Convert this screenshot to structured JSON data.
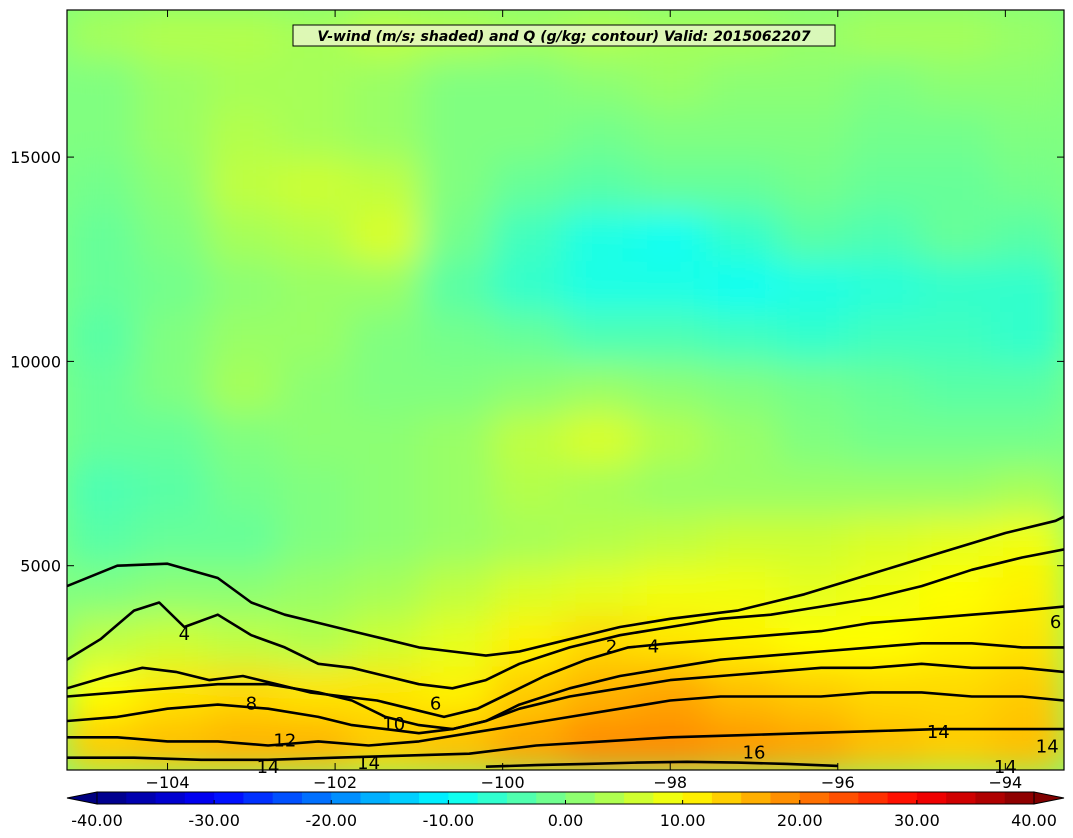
{
  "chart_data": {
    "type": "heatmap",
    "title": "V-wind (m/s; shaded) and Q (g/kg; contour) Valid: 2015062207",
    "xlabel": "",
    "ylabel": "",
    "xlim": [
      -105.2,
      -93.3
    ],
    "ylim": [
      0,
      18600
    ],
    "x_ticks": [
      -104,
      -102,
      -100,
      -98,
      -96,
      -94
    ],
    "x_tick_labels": [
      "−104",
      "−102",
      "−100",
      "−98",
      "−96",
      "−94"
    ],
    "y_ticks": [
      5000,
      10000,
      15000
    ],
    "y_tick_labels": [
      "5000",
      "10000",
      "15000"
    ],
    "shading_levels": [
      -40,
      -37.5,
      -35,
      -32.5,
      -30,
      -27.5,
      -25,
      -22.5,
      -20,
      -17.5,
      -15,
      -12.5,
      -10,
      -7.5,
      -5,
      -2.5,
      0,
      2.5,
      5,
      7.5,
      10,
      12.5,
      15,
      17.5,
      20,
      22.5,
      25,
      27.5,
      30,
      32.5,
      35,
      37.5,
      40
    ],
    "shading_colormap": "jet",
    "colorbar": {
      "orientation": "horizontal",
      "extend": "both",
      "ticks": [
        -40,
        -30,
        -20,
        -10,
        0,
        10,
        20,
        30,
        40
      ],
      "tick_labels": [
        "-40.00",
        "-30.00",
        "-20.00",
        "-10.00",
        "0.00",
        "10.00",
        "20.00",
        "30.00",
        "40.00"
      ]
    },
    "shaded_field_approx": {
      "description": "v-wind values in m/s, rows from top (18600 m) to bottom (0 m), columns from -105.2 to -93.3",
      "rows": [
        [
          3,
          4,
          4,
          3,
          5,
          4,
          3,
          4,
          3,
          3,
          2,
          3,
          3,
          2
        ],
        [
          0,
          2,
          3,
          3,
          2,
          0,
          0,
          1,
          2,
          1,
          1,
          0,
          1,
          1
        ],
        [
          0,
          2,
          4,
          3,
          2,
          0,
          0,
          -1,
          0,
          0,
          0,
          -1,
          -1,
          0
        ],
        [
          -1,
          1,
          5,
          6,
          5,
          0,
          -2,
          -3,
          -2,
          -2,
          -1,
          -2,
          -2,
          -1
        ],
        [
          -2,
          0,
          3,
          4,
          7,
          -1,
          -5,
          -8,
          -9,
          -6,
          -3,
          -4,
          -2,
          -3
        ],
        [
          -2,
          -1,
          1,
          2,
          2,
          -3,
          -6,
          -8,
          -8,
          -9,
          -8,
          -7,
          -6,
          -6
        ],
        [
          -3,
          0,
          2,
          2,
          0,
          -1,
          -2,
          -4,
          -4,
          -5,
          -6,
          -5,
          -5,
          -6
        ],
        [
          -2,
          0,
          3,
          1,
          0,
          0,
          1,
          2,
          1,
          0,
          -1,
          -2,
          -3,
          -3
        ],
        [
          -2,
          -2,
          0,
          1,
          1,
          2,
          5,
          7,
          4,
          2,
          0,
          -1,
          -1,
          -1
        ],
        [
          -4,
          -3,
          -1,
          0,
          1,
          2,
          4,
          3,
          2,
          2,
          2,
          2,
          2,
          3
        ],
        [
          -3,
          -2,
          -2,
          0,
          1,
          2,
          3,
          4,
          5,
          6,
          6,
          7,
          8,
          9
        ],
        [
          0,
          1,
          1,
          2,
          3,
          5,
          7,
          8,
          9,
          9,
          8,
          9,
          10,
          11
        ],
        [
          5,
          6,
          5,
          4,
          6,
          8,
          11,
          13,
          12,
          11,
          10,
          10,
          11,
          12
        ],
        [
          10,
          12,
          13,
          12,
          12,
          11,
          14,
          16,
          17,
          15,
          14,
          13,
          13,
          14
        ],
        [
          14,
          15,
          16,
          16,
          14,
          15,
          17,
          19,
          19,
          18,
          17,
          15,
          14,
          15
        ]
      ]
    },
    "contours": [
      {
        "name": "2",
        "label": "2",
        "x": [
          -105.2,
          -104.6,
          -104,
          -103.4,
          -103,
          -102.6,
          -102.2,
          -101.8,
          -101.4,
          -101,
          -100.6,
          -100.2,
          -99.8,
          -99.2,
          -98.6,
          -98,
          -97.2,
          -96.4,
          -95.6,
          -94.8,
          -94,
          -93.4,
          -93.3
        ],
        "y": [
          4500,
          5000,
          5050,
          4700,
          4100,
          3800,
          3600,
          3400,
          3200,
          3000,
          2900,
          2800,
          2900,
          3200,
          3500,
          3700,
          3900,
          4300,
          4800,
          5300,
          5800,
          6100,
          6200
        ]
      },
      {
        "name": "4",
        "label": "4",
        "x": [
          -105.2,
          -104.8,
          -104.4,
          -104.1,
          -103.8,
          -103.4,
          -103,
          -102.6,
          -102.2,
          -101.8,
          -101.4,
          -101,
          -100.6,
          -100.2,
          -99.8,
          -99.2,
          -98.6,
          -98,
          -97.4,
          -96.8,
          -96.2,
          -95.6,
          -95,
          -94.4,
          -93.8,
          -93.3
        ],
        "y": [
          2700,
          3200,
          3900,
          4100,
          3500,
          3800,
          3300,
          3000,
          2600,
          2500,
          2300,
          2100,
          2000,
          2200,
          2600,
          3000,
          3300,
          3500,
          3700,
          3800,
          4000,
          4200,
          4500,
          4900,
          5200,
          5400
        ]
      },
      {
        "name": "6",
        "label": "6",
        "x": [
          -105.2,
          -104.7,
          -104.3,
          -103.9,
          -103.5,
          -103.1,
          -102.7,
          -102.3,
          -101.9,
          -101.5,
          -101.1,
          -100.7,
          -100.3,
          -99.9,
          -99.5,
          -99,
          -98.5,
          -98,
          -97.4,
          -96.8,
          -96.2,
          -95.6,
          -95,
          -94.4,
          -93.8,
          -93.3
        ],
        "y": [
          2000,
          2300,
          2500,
          2400,
          2200,
          2300,
          2100,
          1900,
          1800,
          1700,
          1500,
          1300,
          1500,
          1900,
          2300,
          2700,
          3000,
          3100,
          3200,
          3300,
          3400,
          3600,
          3700,
          3800,
          3900,
          4000
        ]
      },
      {
        "name": "8",
        "label": "8",
        "x": [
          -105.2,
          -104.6,
          -104,
          -103.4,
          -102.8,
          -102.2,
          -101.8,
          -101.4,
          -101,
          -100.6,
          -100.2,
          -99.8,
          -99.2,
          -98.6,
          -98,
          -97.4,
          -96.8,
          -96.2,
          -95.6,
          -95,
          -94.4,
          -93.8,
          -93.3
        ],
        "y": [
          1800,
          1900,
          2000,
          2100,
          2100,
          1900,
          1700,
          1300,
          1100,
          1000,
          1200,
          1600,
          2000,
          2300,
          2500,
          2700,
          2800,
          2900,
          3000,
          3100,
          3100,
          3000,
          3000
        ]
      },
      {
        "name": "10",
        "label": "10",
        "x": [
          -105.2,
          -104.6,
          -104,
          -103.4,
          -102.8,
          -102.2,
          -101.8,
          -101.4,
          -101,
          -100.6,
          -100.2,
          -99.8,
          -99.2,
          -98.6,
          -98,
          -97.4,
          -96.8,
          -96.2,
          -95.6,
          -95,
          -94.4,
          -93.8,
          -93.3
        ],
        "y": [
          1200,
          1300,
          1500,
          1600,
          1500,
          1300,
          1100,
          1000,
          900,
          1000,
          1200,
          1500,
          1800,
          2000,
          2200,
          2300,
          2400,
          2500,
          2500,
          2600,
          2500,
          2500,
          2400
        ]
      },
      {
        "name": "12",
        "label": "12",
        "x": [
          -105.2,
          -104.6,
          -104,
          -103.4,
          -102.8,
          -102.2,
          -101.6,
          -101,
          -100.4,
          -99.8,
          -99.2,
          -98.6,
          -98,
          -97.4,
          -96.8,
          -96.2,
          -95.6,
          -95,
          -94.4,
          -93.8,
          -93.3
        ],
        "y": [
          800,
          800,
          700,
          700,
          600,
          700,
          600,
          700,
          900,
          1100,
          1300,
          1500,
          1700,
          1800,
          1800,
          1800,
          1900,
          1900,
          1800,
          1800,
          1700
        ]
      },
      {
        "name": "14",
        "label": "14",
        "x": [
          -105.2,
          -104.4,
          -103.6,
          -102.8,
          -102,
          -101.2,
          -100.4,
          -99.6,
          -98.8,
          -98,
          -97.2,
          -96.4,
          -95.6,
          -94.8,
          -94,
          -93.3
        ],
        "y": [
          300,
          300,
          250,
          250,
          300,
          350,
          400,
          600,
          700,
          800,
          850,
          900,
          950,
          1000,
          1000,
          1000
        ]
      },
      {
        "name": "16",
        "label": "16",
        "x": [
          -100.2,
          -99.6,
          -99,
          -98.4,
          -97.8,
          -97.2,
          -96.6,
          -96
        ],
        "y": [
          80,
          120,
          150,
          180,
          200,
          180,
          150,
          100
        ]
      }
    ],
    "contour_labels": [
      {
        "text": "2",
        "x": -98.7,
        "y": 3000
      },
      {
        "text": "4",
        "x": -98.2,
        "y": 3000
      },
      {
        "text": "4",
        "x": -103.8,
        "y": 3300
      },
      {
        "text": "6",
        "x": -93.4,
        "y": 3600
      },
      {
        "text": "6",
        "x": -100.8,
        "y": 1600
      },
      {
        "text": "8",
        "x": -103.0,
        "y": 1600
      },
      {
        "text": "10",
        "x": -101.3,
        "y": 1100
      },
      {
        "text": "12",
        "x": -102.6,
        "y": 700
      },
      {
        "text": "14",
        "x": -101.6,
        "y": 150
      },
      {
        "text": "14",
        "x": -102.8,
        "y": 50
      },
      {
        "text": "14",
        "x": -94.8,
        "y": 900
      },
      {
        "text": "14",
        "x": -93.5,
        "y": 550
      },
      {
        "text": "14",
        "x": -94.0,
        "y": 50
      },
      {
        "text": "16",
        "x": -97.0,
        "y": 400
      }
    ]
  }
}
